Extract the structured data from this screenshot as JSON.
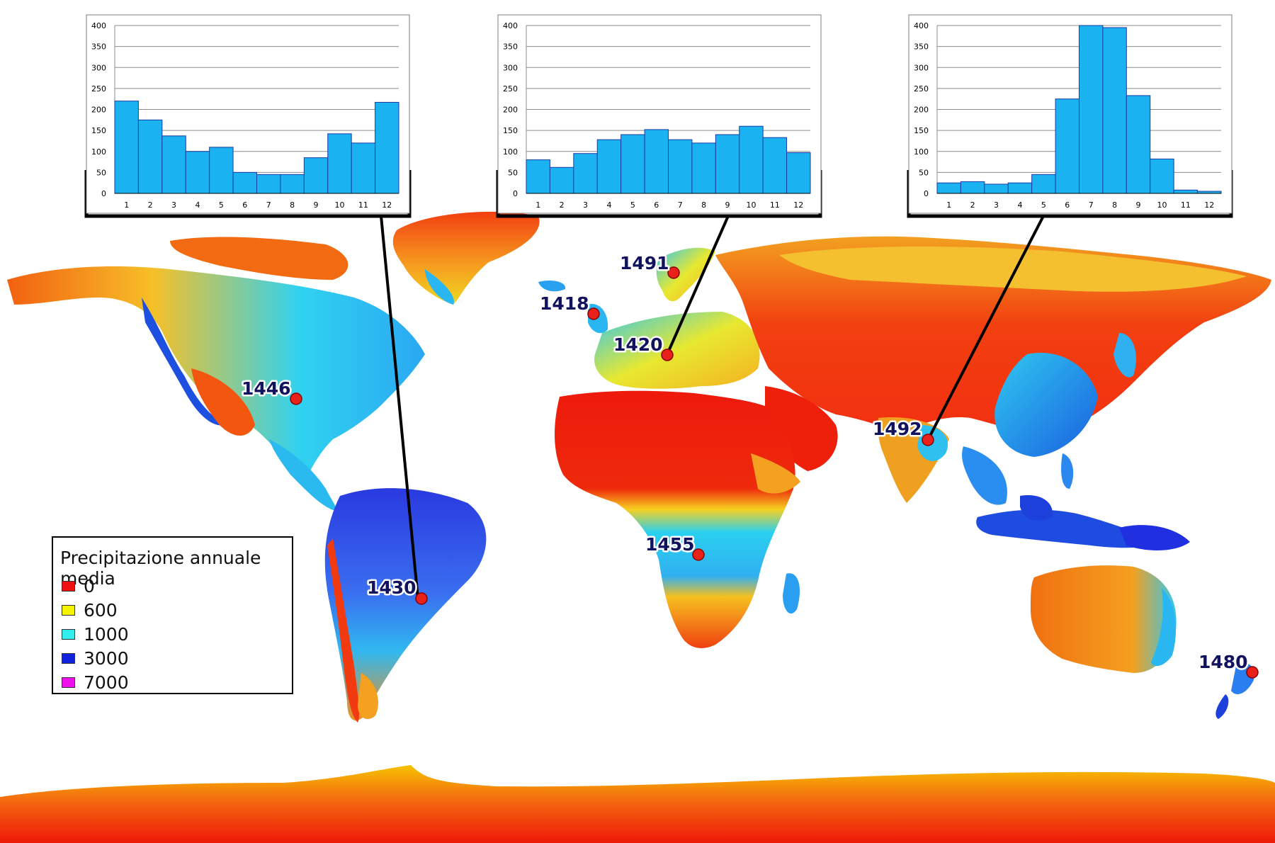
{
  "legend": {
    "title": "Precipitazione annuale media",
    "items": [
      {
        "label": "0",
        "color": "#ee1111"
      },
      {
        "label": "600",
        "color": "#f4f400"
      },
      {
        "label": "1000",
        "color": "#33eeee"
      },
      {
        "label": "3000",
        "color": "#1122dd"
      },
      {
        "label": "7000",
        "color": "#ee11ee"
      }
    ]
  },
  "stations": [
    {
      "label": "1491"
    },
    {
      "label": "1418"
    },
    {
      "label": "1420"
    },
    {
      "label": "1446"
    },
    {
      "label": "1492"
    },
    {
      "label": "1455"
    },
    {
      "label": "1430"
    },
    {
      "label": "1480"
    }
  ],
  "chart_data": [
    {
      "type": "bar",
      "station": "1430",
      "categories": [
        "1",
        "2",
        "3",
        "4",
        "5",
        "6",
        "7",
        "8",
        "9",
        "10",
        "11",
        "12"
      ],
      "values": [
        220,
        175,
        137,
        100,
        110,
        50,
        45,
        45,
        85,
        142,
        120,
        217
      ],
      "ylim": [
        0,
        400
      ],
      "yticks": [
        "0",
        "50",
        "100",
        "150",
        "200",
        "250",
        "300",
        "350",
        "400"
      ],
      "grid": true,
      "bar_color": "#1ab2f0"
    },
    {
      "type": "bar",
      "station": "1420",
      "categories": [
        "1",
        "2",
        "3",
        "4",
        "5",
        "6",
        "7",
        "8",
        "9",
        "10",
        "11",
        "12"
      ],
      "values": [
        80,
        62,
        95,
        128,
        140,
        152,
        128,
        120,
        140,
        160,
        133,
        97
      ],
      "ylim": [
        0,
        400
      ],
      "yticks": [
        "0",
        "50",
        "100",
        "150",
        "200",
        "250",
        "300",
        "350",
        "400"
      ],
      "grid": true,
      "bar_color": "#1ab2f0"
    },
    {
      "type": "bar",
      "station": "1492",
      "categories": [
        "1",
        "2",
        "3",
        "4",
        "5",
        "6",
        "7",
        "8",
        "9",
        "10",
        "11",
        "12"
      ],
      "values": [
        25,
        28,
        22,
        25,
        45,
        225,
        400,
        395,
        233,
        82,
        8,
        5
      ],
      "ylim": [
        0,
        400
      ],
      "yticks": [
        "0",
        "50",
        "100",
        "150",
        "200",
        "250",
        "300",
        "350",
        "400"
      ],
      "grid": true,
      "bar_color": "#1ab2f0"
    }
  ]
}
